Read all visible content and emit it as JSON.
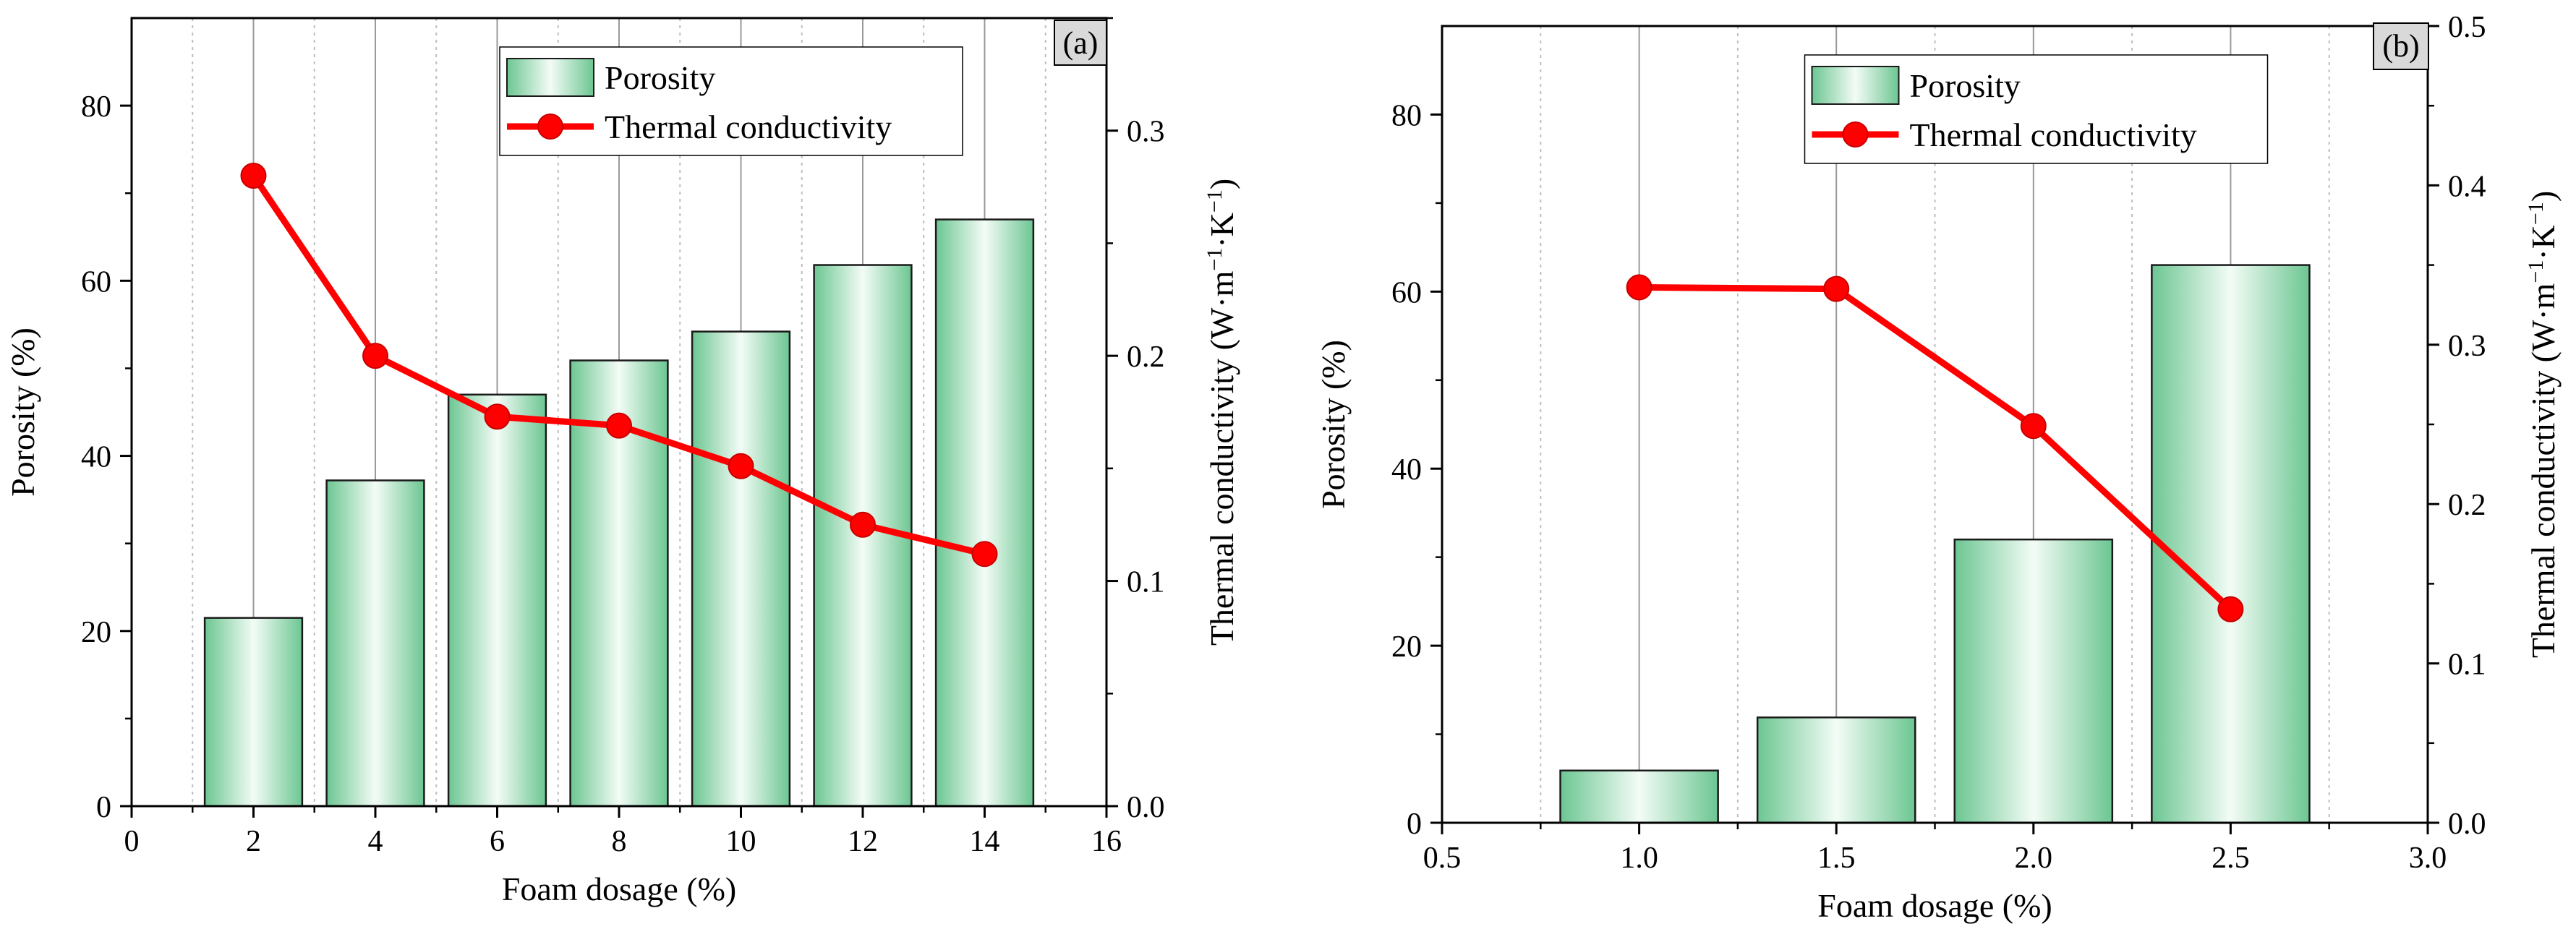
{
  "chart_data": [
    {
      "type": "bar+line",
      "panel_label": "(a)",
      "xlabel": "Foam dosage (%)",
      "ylabel_left": "Porosity (%)",
      "ylabel_right_parts": [
        "Thermal conductivity (W·m",
        "−1",
        "·K",
        "−1",
        ")"
      ],
      "xlim": [
        0,
        16
      ],
      "ylim_left": [
        0,
        90
      ],
      "ylim_right": [
        0,
        0.35
      ],
      "x_ticks": [
        0,
        2,
        4,
        6,
        8,
        10,
        12,
        14,
        16
      ],
      "x_tick_labels": [
        "0",
        "2",
        "4",
        "6",
        "8",
        "10",
        "12",
        "14",
        "16"
      ],
      "yleft_ticks": [
        0,
        20,
        40,
        60,
        80
      ],
      "yleft_tick_labels": [
        "0",
        "20",
        "40",
        "60",
        "80"
      ],
      "yright_ticks": [
        0,
        0.1,
        0.2,
        0.3
      ],
      "yright_tick_labels": [
        "0.0",
        "0.1",
        "0.2",
        "0.3"
      ],
      "bar_width": 1.6,
      "legend_position": "top-center",
      "series": [
        {
          "name": "Porosity",
          "kind": "bar",
          "axis": "left",
          "x": [
            2,
            4,
            6,
            8,
            10,
            12,
            14
          ],
          "values": [
            21.5,
            37.2,
            47.0,
            50.9,
            54.2,
            61.8,
            67.0
          ]
        },
        {
          "name": "Thermal conductivity",
          "kind": "line",
          "axis": "right",
          "x": [
            2,
            4,
            6,
            8,
            10,
            12,
            14
          ],
          "values": [
            0.28,
            0.2,
            0.173,
            0.169,
            0.151,
            0.125,
            0.112
          ]
        }
      ]
    },
    {
      "type": "bar+line",
      "panel_label": "(b)",
      "xlabel": "Foam dosage (%)",
      "ylabel_left": "Porosity (%)",
      "ylabel_right_parts": [
        "Thermal conductivity (W·m",
        "−1",
        "·K",
        "−1",
        ")"
      ],
      "xlim": [
        0.5,
        3.0
      ],
      "ylim_left": [
        0,
        90
      ],
      "ylim_right": [
        0,
        0.5
      ],
      "x_ticks": [
        0.5,
        1.0,
        1.5,
        2.0,
        2.5,
        3.0
      ],
      "x_tick_labels": [
        "0.5",
        "1.0",
        "1.5",
        "2.0",
        "2.5",
        "3.0"
      ],
      "yleft_ticks": [
        0,
        20,
        40,
        60,
        80
      ],
      "yleft_tick_labels": [
        "0",
        "20",
        "40",
        "60",
        "80"
      ],
      "yright_ticks": [
        0,
        0.1,
        0.2,
        0.3,
        0.4,
        0.5
      ],
      "yright_tick_labels": [
        "0.0",
        "0.1",
        "0.2",
        "0.3",
        "0.4",
        "0.5"
      ],
      "bar_width": 0.4,
      "legend_position": "top-center",
      "series": [
        {
          "name": "Porosity",
          "kind": "bar",
          "axis": "left",
          "x": [
            1.0,
            1.5,
            2.0,
            2.5
          ],
          "values": [
            5.9,
            11.9,
            32.0,
            63.0
          ]
        },
        {
          "name": "Thermal conductivity",
          "kind": "line",
          "axis": "right",
          "x": [
            1.0,
            1.5,
            2.0,
            2.5
          ],
          "values": [
            0.336,
            0.335,
            0.249,
            0.134
          ]
        }
      ]
    }
  ],
  "colors": {
    "bar_fill_edge": "#cbeed6",
    "bar_fill_center": "#f3fcf6",
    "bar_fill_mid": "#6cc692",
    "bar_stroke": "#1a1a1a",
    "line": "#ff0000",
    "grid": "#bdbdbd",
    "axis": "#000000",
    "tag_fill": "#d9d9d9"
  }
}
